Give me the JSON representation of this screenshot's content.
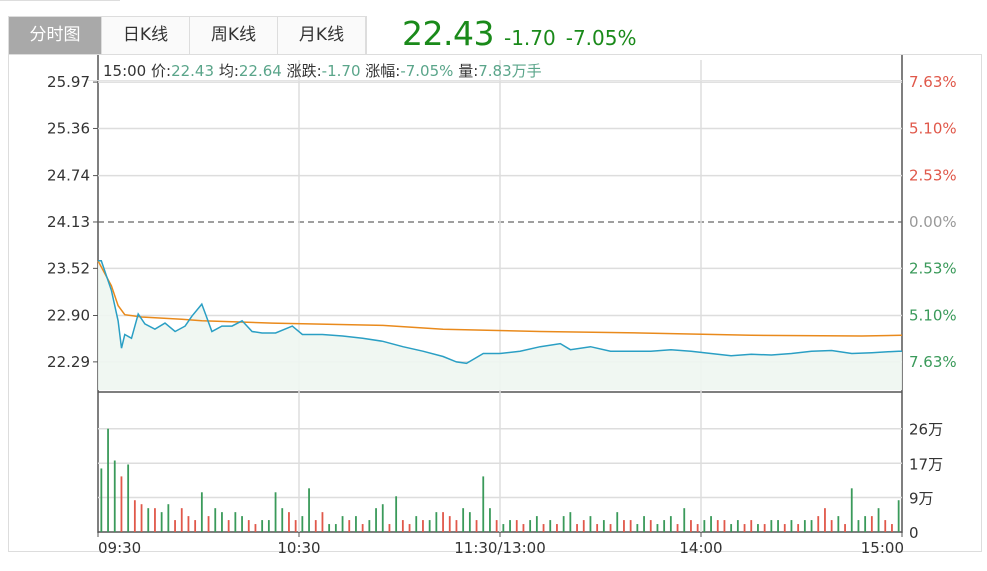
{
  "tabs": [
    {
      "label": "分时图",
      "active": true
    },
    {
      "label": "日K线",
      "active": false
    },
    {
      "label": "周K线",
      "active": false
    },
    {
      "label": "月K线",
      "active": false
    }
  ],
  "quote": {
    "price": "22.43",
    "change": "-1.70",
    "change_pct": "-7.05%",
    "color": "#1a8a1a"
  },
  "info_bar": {
    "time": "15:00",
    "price_label": "价:",
    "price": "22.43",
    "avg_label": "均:",
    "avg": "22.64",
    "change_label": "涨跌:",
    "change": "-1.70",
    "pct_label": "涨幅:",
    "pct": "-7.05%",
    "vol_label": "量:",
    "vol": "7.83万手"
  },
  "chart_data": {
    "type": "line",
    "prev_close": 24.13,
    "price_axis": {
      "ticks": [
        "25.97",
        "25.36",
        "24.74",
        "24.13",
        "23.52",
        "22.90",
        "22.29"
      ],
      "ylim": [
        21.92,
        26.3
      ]
    },
    "pct_axis": {
      "ticks": [
        "7.63%",
        "5.10%",
        "2.53%",
        "0.00%",
        "2.53%",
        "5.10%",
        "7.63%"
      ],
      "colors": [
        "#e0584a",
        "#e0584a",
        "#e0584a",
        "#999999",
        "#3a9a5a",
        "#3a9a5a",
        "#3a9a5a"
      ]
    },
    "x_ticks": [
      "09:30",
      "10:30",
      "11:30/13:00",
      "14:00",
      "15:00"
    ],
    "grid": true,
    "series": [
      {
        "key": "price",
        "color": "#2a9fc4",
        "points": [
          [
            "09:30",
            23.62
          ],
          [
            "09:31",
            23.62
          ],
          [
            "09:34",
            23.23
          ],
          [
            "09:36",
            22.83
          ],
          [
            "09:37",
            22.47
          ],
          [
            "09:38",
            22.65
          ],
          [
            "09:40",
            22.6
          ],
          [
            "09:42",
            22.92
          ],
          [
            "09:44",
            22.79
          ],
          [
            "09:47",
            22.72
          ],
          [
            "09:50",
            22.8
          ],
          [
            "09:53",
            22.69
          ],
          [
            "09:56",
            22.76
          ],
          [
            "09:58",
            22.89
          ],
          [
            "10:01",
            23.05
          ],
          [
            "10:02",
            22.93
          ],
          [
            "10:04",
            22.69
          ],
          [
            "10:07",
            22.76
          ],
          [
            "10:10",
            22.76
          ],
          [
            "10:13",
            22.83
          ],
          [
            "10:16",
            22.69
          ],
          [
            "10:19",
            22.67
          ],
          [
            "10:23",
            22.67
          ],
          [
            "10:28",
            22.76
          ],
          [
            "10:31",
            22.65
          ],
          [
            "10:37",
            22.65
          ],
          [
            "10:43",
            22.63
          ],
          [
            "10:49",
            22.6
          ],
          [
            "10:55",
            22.56
          ],
          [
            "11:01",
            22.49
          ],
          [
            "11:07",
            22.43
          ],
          [
            "11:13",
            22.36
          ],
          [
            "11:17",
            22.29
          ],
          [
            "11:20",
            22.27
          ],
          [
            "11:25",
            22.4
          ],
          [
            "11:30",
            22.4
          ],
          [
            "13:06",
            22.43
          ],
          [
            "13:12",
            22.49
          ],
          [
            "13:18",
            22.53
          ],
          [
            "13:21",
            22.45
          ],
          [
            "13:27",
            22.49
          ],
          [
            "13:33",
            22.43
          ],
          [
            "13:39",
            22.43
          ],
          [
            "13:45",
            22.43
          ],
          [
            "13:51",
            22.45
          ],
          [
            "13:57",
            22.43
          ],
          [
            "14:03",
            22.4
          ],
          [
            "14:09",
            22.37
          ],
          [
            "14:15",
            22.39
          ],
          [
            "14:21",
            22.38
          ],
          [
            "14:27",
            22.4
          ],
          [
            "14:33",
            22.43
          ],
          [
            "14:39",
            22.44
          ],
          [
            "14:45",
            22.4
          ],
          [
            "14:51",
            22.41
          ],
          [
            "14:59",
            22.43
          ],
          [
            "15:00",
            22.43
          ]
        ]
      },
      {
        "key": "average",
        "color": "#e98a1c",
        "points": [
          [
            "09:30",
            23.62
          ],
          [
            "09:34",
            23.29
          ],
          [
            "09:36",
            23.03
          ],
          [
            "09:38",
            22.91
          ],
          [
            "09:43",
            22.88
          ],
          [
            "09:55",
            22.85
          ],
          [
            "10:01",
            22.83
          ],
          [
            "10:22",
            22.8
          ],
          [
            "10:55",
            22.77
          ],
          [
            "11:13",
            22.72
          ],
          [
            "13:12",
            22.69
          ],
          [
            "13:42",
            22.67
          ],
          [
            "14:15",
            22.64
          ],
          [
            "14:48",
            22.63
          ],
          [
            "15:00",
            22.64
          ]
        ]
      }
    ],
    "volume": {
      "unit": "万",
      "ticks": [
        "26万",
        "17万",
        "9万",
        "0"
      ],
      "ylim": [
        0,
        35
      ],
      "up_color": "#e0584a",
      "down_color": "#3a9a5a",
      "start": "09:31",
      "step_minutes": 2,
      "values": [
        16,
        26,
        18,
        14,
        17,
        8,
        7,
        6,
        6,
        5,
        7,
        3,
        6,
        4,
        3,
        10,
        4,
        6,
        5,
        3,
        5,
        4,
        3,
        2,
        3,
        3,
        10,
        6,
        5,
        3,
        4,
        11,
        3,
        5,
        2,
        2,
        4,
        3,
        4,
        2,
        3,
        6,
        7,
        2,
        9,
        3,
        2,
        4,
        3,
        3,
        5,
        5,
        4,
        3,
        6,
        5,
        3,
        14,
        6,
        3,
        2,
        3,
        3,
        2,
        3,
        4,
        2,
        3,
        2,
        4,
        5,
        2,
        3,
        4,
        2,
        3,
        2,
        5,
        3,
        3,
        2,
        4,
        3,
        2,
        3,
        4,
        2,
        6,
        3,
        2,
        3,
        4,
        3,
        3,
        2,
        3,
        2,
        3,
        2,
        2,
        3,
        3,
        2,
        3,
        2,
        3,
        3,
        4,
        6,
        3,
        4,
        2,
        11,
        3,
        4,
        4,
        6,
        3,
        2,
        8
      ],
      "directions": [
        -1,
        -1,
        -1,
        1,
        -1,
        1,
        1,
        -1,
        1,
        -1,
        -1,
        1,
        1,
        1,
        1,
        -1,
        1,
        -1,
        -1,
        1,
        -1,
        -1,
        1,
        1,
        -1,
        -1,
        -1,
        -1,
        1,
        1,
        -1,
        -1,
        1,
        1,
        -1,
        -1,
        -1,
        1,
        -1,
        1,
        -1,
        -1,
        -1,
        1,
        -1,
        1,
        1,
        -1,
        1,
        -1,
        -1,
        1,
        1,
        1,
        -1,
        -1,
        1,
        -1,
        -1,
        1,
        -1,
        -1,
        1,
        1,
        -1,
        -1,
        1,
        -1,
        1,
        -1,
        -1,
        1,
        1,
        -1,
        1,
        -1,
        1,
        -1,
        1,
        1,
        -1,
        -1,
        1,
        -1,
        -1,
        -1,
        1,
        -1,
        1,
        1,
        -1,
        -1,
        1,
        1,
        -1,
        -1,
        1,
        1,
        -1,
        1,
        -1,
        -1,
        1,
        -1,
        1,
        -1,
        -1,
        1,
        1,
        1,
        -1,
        1,
        -1,
        -1,
        -1,
        1,
        -1,
        1,
        1,
        -1
      ]
    }
  }
}
